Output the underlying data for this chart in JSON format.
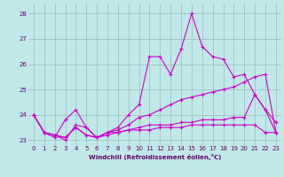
{
  "title": "",
  "xlabel": "Windchill (Refroidissement éolien,°C)",
  "bg_color": "#c0e8e8",
  "grid_color": "#99bbbb",
  "line_color": "#cc00cc",
  "x": [
    0,
    1,
    2,
    3,
    4,
    5,
    6,
    7,
    8,
    9,
    10,
    11,
    12,
    13,
    14,
    15,
    16,
    17,
    18,
    19,
    20,
    21,
    22,
    23
  ],
  "series1": [
    24.0,
    23.3,
    23.1,
    23.8,
    24.2,
    23.5,
    23.1,
    23.3,
    23.5,
    24.0,
    24.4,
    26.3,
    26.3,
    25.6,
    26.6,
    28.0,
    26.7,
    26.3,
    26.2,
    25.5,
    25.6,
    24.8,
    24.2,
    23.7
  ],
  "series2": [
    24.0,
    23.3,
    23.2,
    23.0,
    23.6,
    23.5,
    23.1,
    23.3,
    23.4,
    23.6,
    23.9,
    24.0,
    24.2,
    24.4,
    24.6,
    24.7,
    24.8,
    24.9,
    25.0,
    25.1,
    25.3,
    25.5,
    25.6,
    23.3
  ],
  "series3": [
    24.0,
    23.3,
    23.2,
    23.1,
    23.5,
    23.2,
    23.1,
    23.2,
    23.3,
    23.4,
    23.5,
    23.6,
    23.6,
    23.6,
    23.7,
    23.7,
    23.8,
    23.8,
    23.8,
    23.9,
    23.9,
    24.8,
    24.2,
    23.3
  ],
  "series4": [
    24.0,
    23.3,
    23.2,
    23.1,
    23.5,
    23.2,
    23.1,
    23.3,
    23.3,
    23.4,
    23.4,
    23.4,
    23.5,
    23.5,
    23.5,
    23.6,
    23.6,
    23.6,
    23.6,
    23.6,
    23.6,
    23.6,
    23.3,
    23.3
  ],
  "ylim": [
    22.8,
    28.4
  ],
  "yticks": [
    23,
    24,
    25,
    26,
    27,
    28
  ],
  "xticks": [
    0,
    1,
    2,
    3,
    4,
    5,
    6,
    7,
    8,
    9,
    10,
    11,
    12,
    13,
    14,
    15,
    16,
    17,
    18,
    19,
    20,
    21,
    22,
    23
  ],
  "xlabel_fontsize": 5.0,
  "tick_fontsize": 5.0,
  "xlabel_color": "#660066",
  "tick_color": "#660066"
}
